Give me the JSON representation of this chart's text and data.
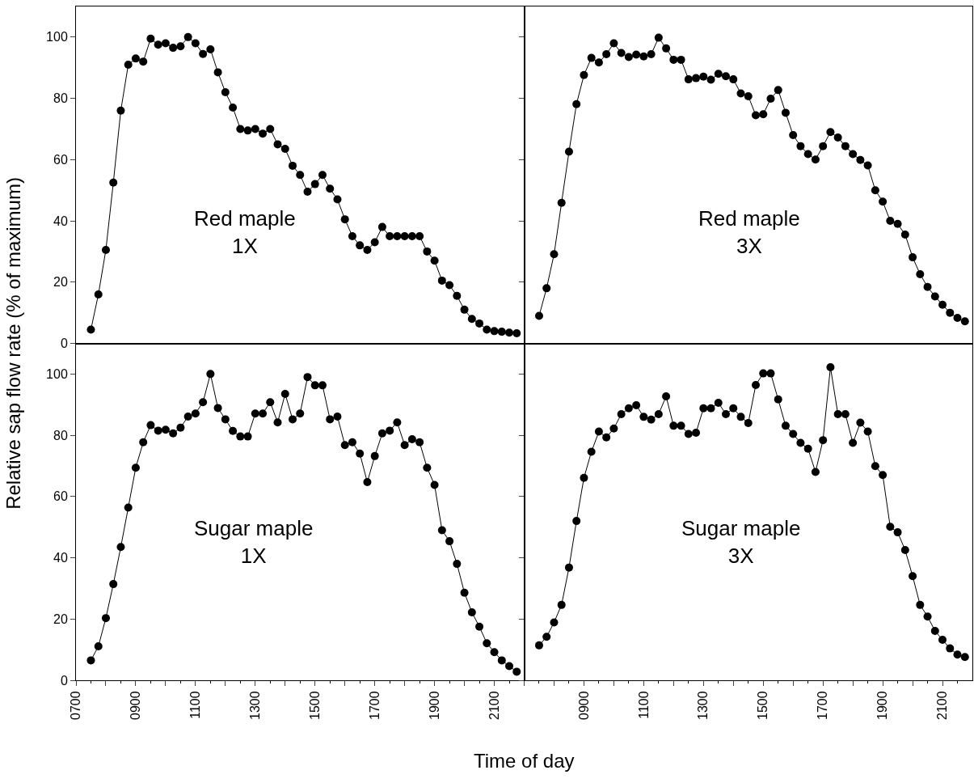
{
  "chart_data": [
    {
      "type": "line",
      "ylabel": "Relative sap flow rate (% of maximum)",
      "annotations": [
        "Red maple\n1X"
      ],
      "x": [
        750,
        775,
        800,
        825,
        850,
        875,
        900,
        925,
        950,
        975,
        1000,
        1025,
        1050,
        1075,
        1100,
        1125,
        1150,
        1175,
        1200,
        1225,
        1250,
        1275,
        1300,
        1325,
        1350,
        1375,
        1400,
        1425,
        1450,
        1475,
        1500,
        1525,
        1550,
        1575,
        1600,
        1625,
        1650,
        1675,
        1700,
        1725,
        1750,
        1775,
        1800,
        1825,
        1850,
        1875,
        1900,
        1925,
        1950,
        1975,
        2000,
        2025,
        2050,
        2075,
        2100,
        2125,
        2150,
        2175
      ],
      "series": [
        {
          "color": "#000000",
          "values": [
            4.5,
            16,
            30.5,
            52.5,
            76,
            91,
            93,
            92,
            99.5,
            97.5,
            98,
            96.5,
            97,
            100,
            98,
            94.5,
            96,
            88.5,
            82,
            77,
            70,
            69.5,
            70,
            68.5,
            70,
            65,
            63.5,
            58,
            55,
            49.5,
            52,
            55,
            50.5,
            47,
            40.5,
            35,
            32,
            30.5,
            33,
            38,
            35,
            35,
            35,
            35,
            35,
            30,
            27,
            20.5,
            19,
            15.5,
            11,
            8,
            6.5,
            4.5,
            4,
            3.8,
            3.5,
            3.3
          ]
        }
      ],
      "xlim": [
        700,
        2200
      ],
      "ylim": [
        0,
        110
      ],
      "yticks": [
        0,
        20,
        40,
        60,
        80,
        100
      ],
      "tick_labels": "y",
      "marker": "circle",
      "line_style": "solid",
      "grid": false
    },
    {
      "type": "line",
      "annotations": [
        "Red maple\n3X"
      ],
      "x": [
        750,
        775,
        800,
        825,
        850,
        875,
        900,
        925,
        950,
        975,
        1000,
        1025,
        1050,
        1075,
        1100,
        1125,
        1150,
        1175,
        1200,
        1225,
        1250,
        1275,
        1300,
        1325,
        1350,
        1375,
        1400,
        1425,
        1450,
        1475,
        1500,
        1525,
        1550,
        1575,
        1600,
        1625,
        1650,
        1675,
        1700,
        1725,
        1750,
        1775,
        1800,
        1825,
        1850,
        1875,
        1900,
        1925,
        1950,
        1975,
        2000,
        2025,
        2050,
        2075,
        2100,
        2125,
        2150,
        2175
      ],
      "series": [
        {
          "color": "#000000",
          "values": [
            9,
            18,
            29.1,
            45.9,
            62.6,
            78.1,
            87.6,
            93.2,
            91.7,
            94.4,
            98,
            94.8,
            93.5,
            94.3,
            93.7,
            94.4,
            99.8,
            96.3,
            92.6,
            92.6,
            86.2,
            86.6,
            87.1,
            86.1,
            88,
            87.2,
            86.2,
            81.6,
            80.7,
            74.5,
            74.8,
            79.9,
            82.7,
            75.3,
            68,
            64.4,
            61.8,
            60,
            64.4,
            69,
            67.2,
            64.4,
            61.8,
            59.9,
            58.1,
            50,
            46.3,
            40,
            39,
            35.5,
            28.1,
            22.6,
            18.4,
            15.3,
            12.6,
            10,
            8.3,
            7.2
          ]
        }
      ],
      "xlim": [
        700,
        2200
      ],
      "ylim": [
        0,
        110
      ],
      "yticks": [
        0,
        20,
        40,
        60,
        80,
        100
      ],
      "tick_labels": false,
      "marker": "circle",
      "line_style": "solid",
      "grid": false
    },
    {
      "type": "line",
      "xlabel": "Time of day",
      "annotations": [
        "Sugar maple\n1X"
      ],
      "x": [
        750,
        775,
        800,
        825,
        850,
        875,
        900,
        925,
        950,
        975,
        1000,
        1025,
        1050,
        1075,
        1100,
        1125,
        1150,
        1175,
        1200,
        1225,
        1250,
        1275,
        1300,
        1325,
        1350,
        1375,
        1400,
        1425,
        1450,
        1475,
        1500,
        1525,
        1550,
        1575,
        1600,
        1625,
        1650,
        1675,
        1700,
        1725,
        1750,
        1775,
        1800,
        1825,
        1850,
        1875,
        1900,
        1925,
        1950,
        1975,
        2000,
        2025,
        2050,
        2075,
        2100,
        2125,
        2150,
        2175
      ],
      "series": [
        {
          "color": "#000000",
          "values": [
            6.5,
            11.1,
            20.3,
            31.4,
            43.5,
            56.4,
            69.4,
            77.7,
            83.3,
            81.5,
            81.8,
            80.6,
            82.5,
            86.1,
            87.1,
            90.8,
            100,
            88.9,
            85.2,
            81.4,
            79.6,
            79.6,
            87.1,
            87.1,
            90.8,
            84.2,
            93.5,
            85.2,
            87.1,
            99,
            96.3,
            96.3,
            85.2,
            86.1,
            76.8,
            77.7,
            74,
            64.7,
            73.2,
            80.6,
            81.5,
            84.2,
            76.8,
            78.7,
            77.7,
            69.4,
            63.8,
            49,
            45.4,
            38,
            28.6,
            22.2,
            17.5,
            12.1,
            9.2,
            6.5,
            4.6,
            2.8
          ]
        }
      ],
      "xlim": [
        700,
        2200
      ],
      "xticks": [
        {
          "value": 700,
          "label": "0700"
        },
        {
          "value": 800,
          "label": null
        },
        {
          "value": 900,
          "label": "0900"
        },
        {
          "value": 1000,
          "label": null
        },
        {
          "value": 1100,
          "label": "1100"
        },
        {
          "value": 1200,
          "label": null
        },
        {
          "value": 1300,
          "label": "1300"
        },
        {
          "value": 1400,
          "label": null
        },
        {
          "value": 1500,
          "label": "1500"
        },
        {
          "value": 1600,
          "label": null
        },
        {
          "value": 1700,
          "label": "1700"
        },
        {
          "value": 1800,
          "label": null
        },
        {
          "value": 1900,
          "label": "1900"
        },
        {
          "value": 2000,
          "label": null
        },
        {
          "value": 2100,
          "label": "2100"
        }
      ],
      "ylim": [
        0,
        110
      ],
      "yticks": [
        0,
        20,
        40,
        60,
        80,
        100
      ],
      "marker": "circle",
      "line_style": "solid",
      "grid": false
    },
    {
      "type": "line",
      "annotations": [
        "Sugar maple\n3X"
      ],
      "x": [
        750,
        775,
        800,
        825,
        850,
        875,
        900,
        925,
        950,
        975,
        1000,
        1025,
        1050,
        1075,
        1100,
        1125,
        1150,
        1175,
        1200,
        1225,
        1250,
        1275,
        1300,
        1325,
        1350,
        1375,
        1400,
        1425,
        1450,
        1475,
        1500,
        1525,
        1550,
        1575,
        1600,
        1625,
        1650,
        1675,
        1700,
        1725,
        1750,
        1775,
        1800,
        1825,
        1850,
        1875,
        1900,
        1925,
        1950,
        1975,
        2000,
        2025,
        2050,
        2075,
        2100,
        2125,
        2150,
        2175
      ],
      "series": [
        {
          "color": "#000000",
          "values": [
            11.4,
            14.2,
            18.9,
            24.6,
            36.8,
            52,
            66.1,
            74.6,
            81.2,
            79.3,
            82.2,
            86.9,
            88.8,
            89.8,
            86,
            85.1,
            86.9,
            92.7,
            83.1,
            83.1,
            80.4,
            80.8,
            88.8,
            88.8,
            90.6,
            86.9,
            88.8,
            86,
            84,
            96.4,
            100.2,
            100.2,
            91.7,
            83.1,
            80.4,
            77.5,
            75.6,
            68,
            78.4,
            102.2,
            86.9,
            86.9,
            77.5,
            84.1,
            81.2,
            69.9,
            67,
            50.1,
            48.3,
            42.5,
            34,
            24.6,
            20.8,
            16.1,
            13.2,
            10.4,
            8.4,
            7.6
          ]
        }
      ],
      "xlim": [
        700,
        2200
      ],
      "xticks": [
        {
          "value": 700,
          "label": null
        },
        {
          "value": 800,
          "label": null
        },
        {
          "value": 900,
          "label": "0900"
        },
        {
          "value": 1000,
          "label": null
        },
        {
          "value": 1100,
          "label": "1100"
        },
        {
          "value": 1200,
          "label": null
        },
        {
          "value": 1300,
          "label": "1300"
        },
        {
          "value": 1400,
          "label": null
        },
        {
          "value": 1500,
          "label": "1500"
        },
        {
          "value": 1600,
          "label": null
        },
        {
          "value": 1700,
          "label": "1700"
        },
        {
          "value": 1800,
          "label": null
        },
        {
          "value": 1900,
          "label": "1900"
        },
        {
          "value": 2000,
          "label": null
        },
        {
          "value": 2100,
          "label": "2100"
        }
      ],
      "ylim": [
        0,
        110
      ],
      "yticks": [
        0,
        20,
        40,
        60,
        80,
        100
      ],
      "tick_labels": "x",
      "marker": "circle",
      "line_style": "solid",
      "grid": false
    }
  ]
}
